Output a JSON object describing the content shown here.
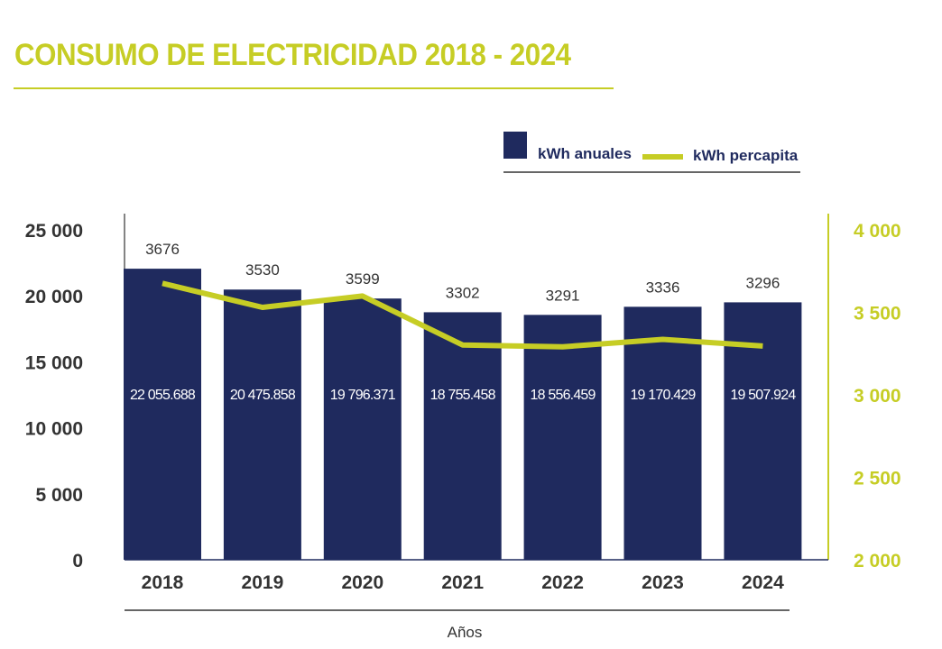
{
  "title": "CONSUMO DE ELECTRICIDAD 2018 - 2024",
  "chart_data": {
    "type": "bar+line",
    "title": "CONSUMO DE ELECTRICIDAD 2018 - 2024",
    "xlabel": "Años",
    "categories": [
      "2018",
      "2019",
      "2020",
      "2021",
      "2022",
      "2023",
      "2024"
    ],
    "series": [
      {
        "name": "kWh anuales",
        "type": "bar",
        "axis": "left",
        "color": "#1f2a5e",
        "values": [
          22055688,
          20475858,
          19796371,
          18755458,
          18556459,
          19170429,
          19507924
        ],
        "labels": [
          "22 055.688",
          "20 475.858",
          "19 796.371",
          "18 755.458",
          "18 556.459",
          "19 170.429",
          "19 507.924"
        ]
      },
      {
        "name": "kWh percapita",
        "type": "line",
        "axis": "right",
        "color": "#c6cd25",
        "values": [
          3676,
          3530,
          3599,
          3302,
          3291,
          3336,
          3296
        ],
        "labels": [
          "3676",
          "3530",
          "3599",
          "3302",
          "3291",
          "3336",
          "3296"
        ]
      }
    ],
    "y_left": {
      "range": [
        0,
        25000
      ],
      "ticks": [
        0,
        5000,
        10000,
        15000,
        20000,
        25000
      ],
      "tick_labels": [
        "0",
        "5 000",
        "10 000",
        "15 000",
        "20 000",
        "25 000"
      ],
      "unit_note": "bar values in thousands relative to axis"
    },
    "y_right": {
      "range": [
        2000,
        4000
      ],
      "ticks": [
        2000,
        2500,
        3000,
        3500,
        4000
      ],
      "tick_labels": [
        "2 000",
        "2 500",
        "3 000",
        "3 500",
        "4 000"
      ],
      "color": "#c6cd25"
    },
    "legend": {
      "position": "top-right",
      "items": [
        "kWh anuales",
        "kWh percapita"
      ]
    },
    "grid": false
  }
}
